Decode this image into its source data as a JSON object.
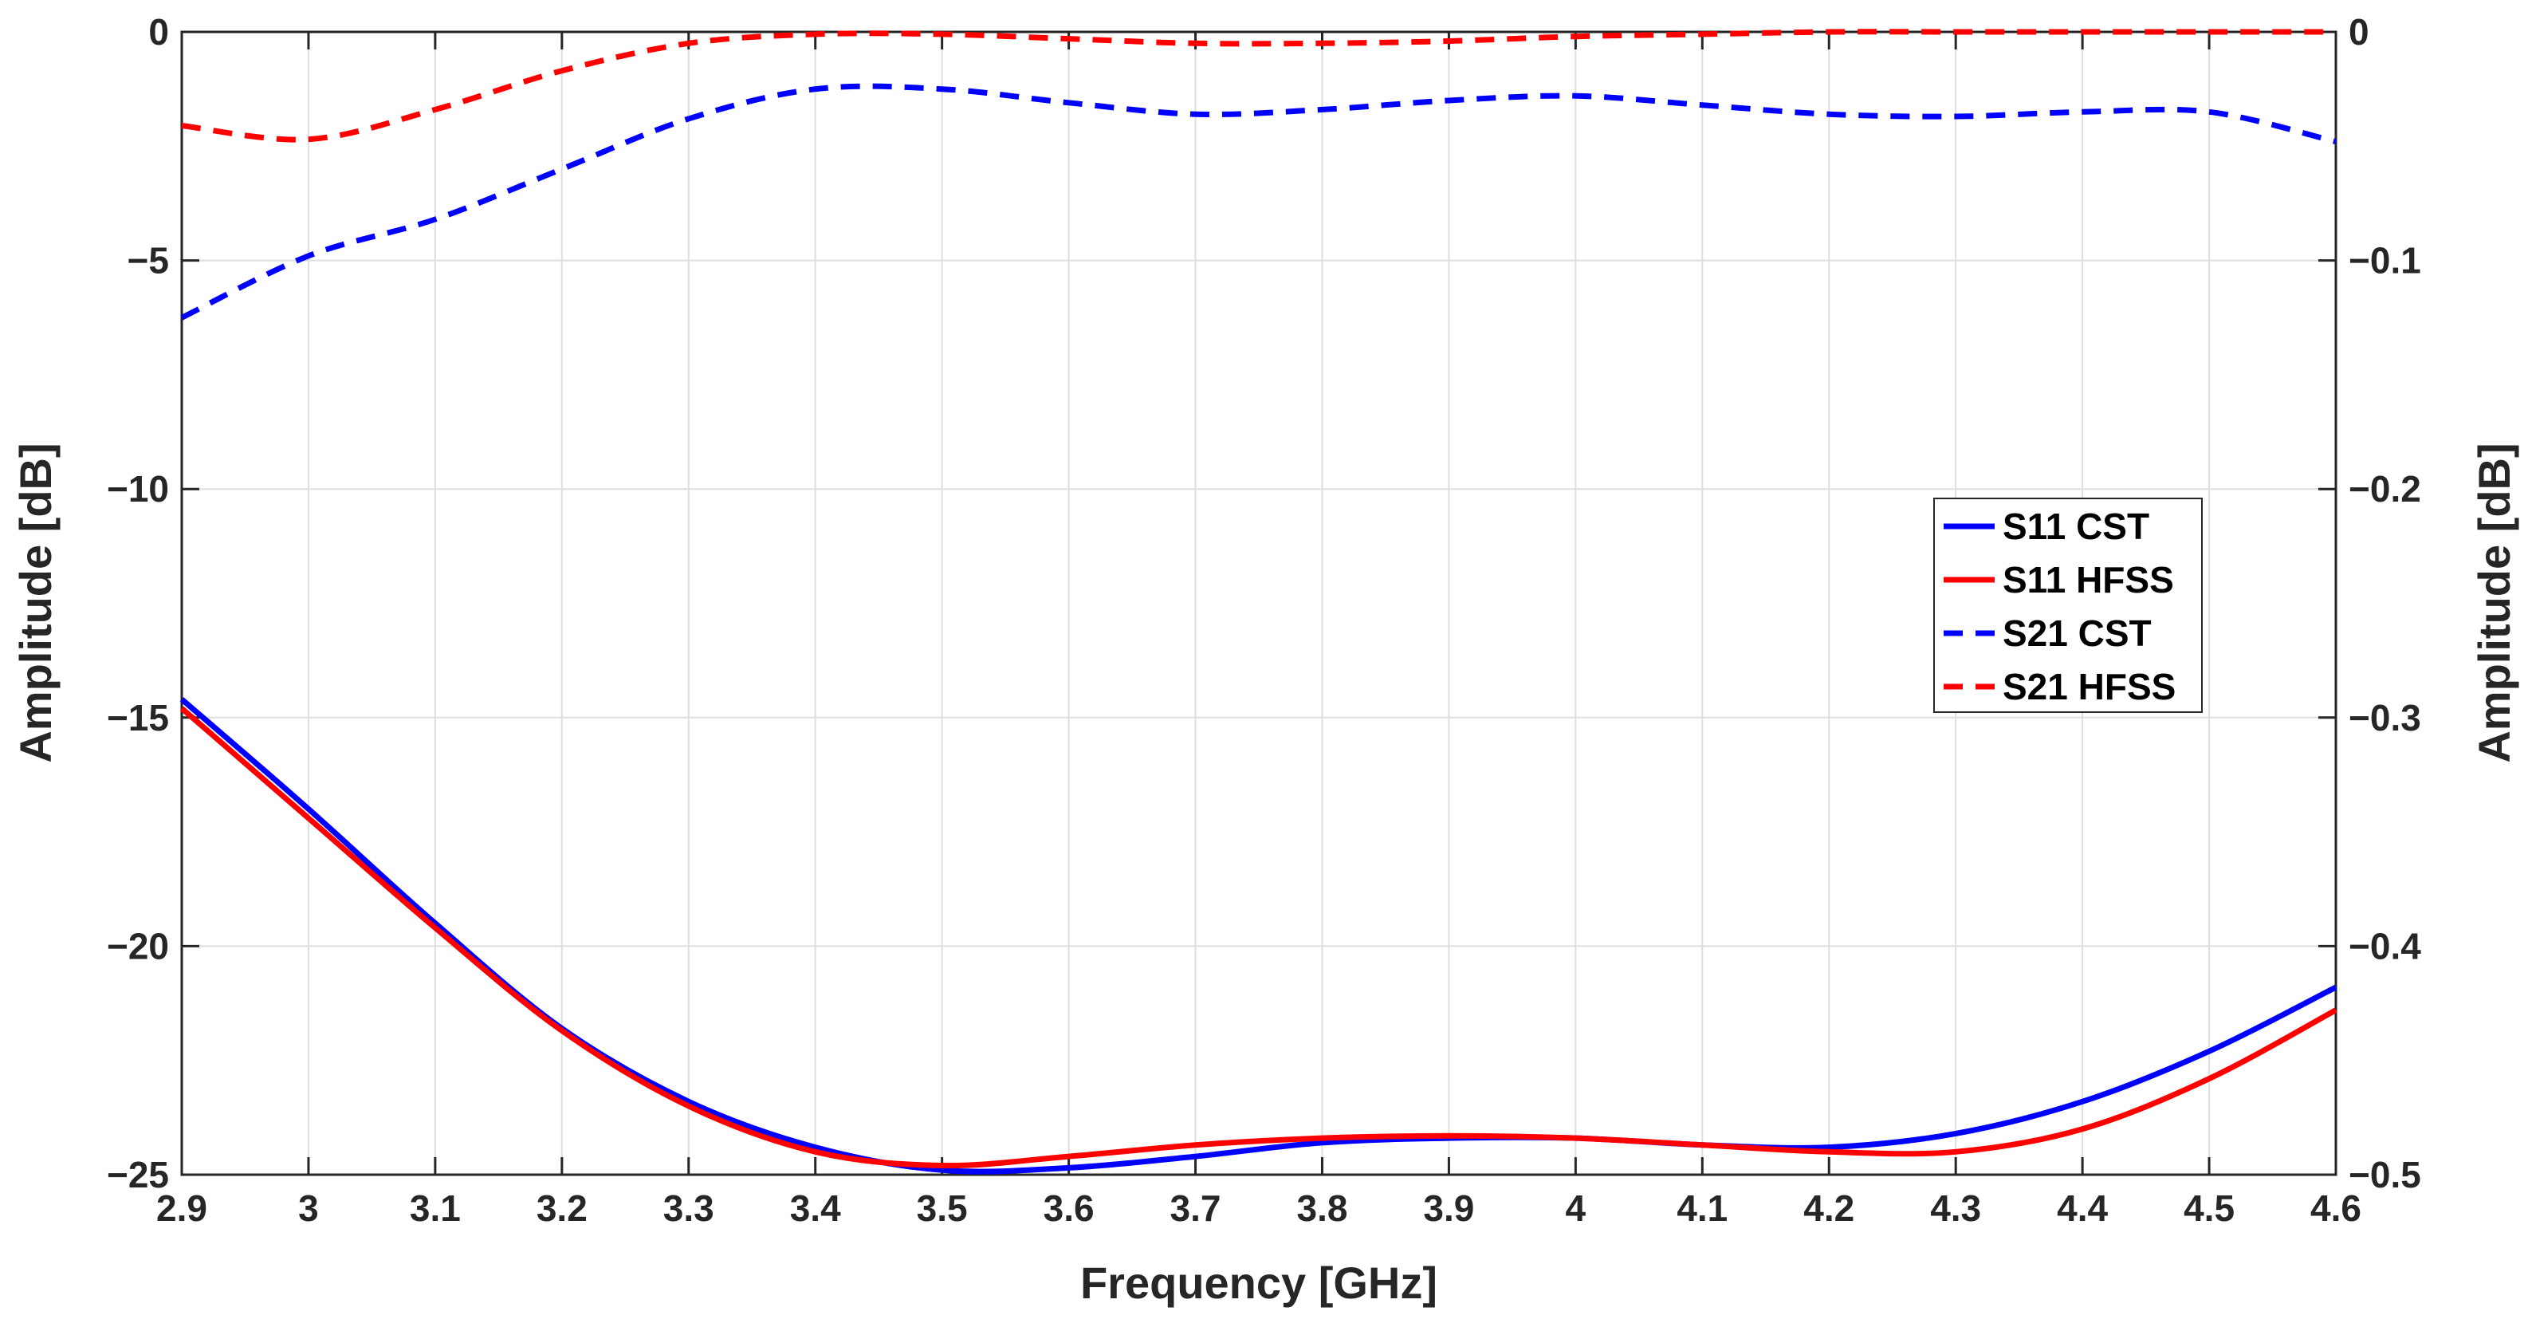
{
  "chart_data": {
    "type": "line",
    "title": "",
    "xlabel": "Frequency [GHz]",
    "ylabel_left": "Amplitude [dB]",
    "ylabel_right": "Amplitude [dB]",
    "xlim": [
      2.9,
      4.6
    ],
    "ylim_left": [
      -25,
      0
    ],
    "ylim_right": [
      -0.5,
      0
    ],
    "x_ticks": [
      "2.9",
      "3",
      "3.1",
      "3.2",
      "3.3",
      "3.4",
      "3.5",
      "3.6",
      "3.7",
      "3.8",
      "3.9",
      "4",
      "4.1",
      "4.2",
      "4.3",
      "4.4",
      "4.5",
      "4.6"
    ],
    "y_left_ticks": [
      "0",
      "−5",
      "−10",
      "−15",
      "−20",
      "−25"
    ],
    "y_right_ticks": [
      "0",
      "−0.1",
      "−0.2",
      "−0.3",
      "−0.4",
      "−0.5"
    ],
    "grid": true,
    "legend_position": "right",
    "series": [
      {
        "name": "S11 CST",
        "color": "#0000ff",
        "style": "solid",
        "axis": "left",
        "x": [
          2.9,
          3.0,
          3.1,
          3.2,
          3.3,
          3.4,
          3.5,
          3.6,
          3.7,
          3.8,
          3.9,
          4.0,
          4.1,
          4.2,
          4.3,
          4.4,
          4.5,
          4.6
        ],
        "y": [
          -14.6,
          -17.0,
          -19.5,
          -21.8,
          -23.4,
          -24.4,
          -24.9,
          -24.85,
          -24.6,
          -24.3,
          -24.2,
          -24.2,
          -24.35,
          -24.4,
          -24.1,
          -23.4,
          -22.3,
          -20.9
        ]
      },
      {
        "name": "S11 HFSS",
        "color": "#ff0000",
        "style": "solid",
        "axis": "left",
        "x": [
          2.9,
          3.0,
          3.1,
          3.2,
          3.3,
          3.4,
          3.5,
          3.6,
          3.7,
          3.8,
          3.9,
          4.0,
          4.1,
          4.2,
          4.3,
          4.4,
          4.5,
          4.6
        ],
        "y": [
          -14.8,
          -17.2,
          -19.6,
          -21.85,
          -23.5,
          -24.5,
          -24.8,
          -24.6,
          -24.35,
          -24.2,
          -24.15,
          -24.2,
          -24.35,
          -24.5,
          -24.5,
          -24.0,
          -22.9,
          -21.4
        ]
      },
      {
        "name": "S21 CST",
        "color": "#0000ff",
        "style": "dashed",
        "axis": "right",
        "x": [
          2.9,
          3.0,
          3.1,
          3.2,
          3.3,
          3.4,
          3.5,
          3.6,
          3.7,
          3.8,
          3.9,
          4.0,
          4.1,
          4.2,
          4.3,
          4.4,
          4.5,
          4.6
        ],
        "y": [
          -0.125,
          -0.098,
          -0.082,
          -0.06,
          -0.038,
          -0.025,
          -0.025,
          -0.031,
          -0.036,
          -0.034,
          -0.03,
          -0.028,
          -0.032,
          -0.036,
          -0.037,
          -0.035,
          -0.035,
          -0.048
        ]
      },
      {
        "name": "S21 HFSS",
        "color": "#ff0000",
        "style": "dashed",
        "axis": "right",
        "x": [
          2.9,
          3.0,
          3.1,
          3.2,
          3.3,
          3.4,
          3.5,
          3.6,
          3.7,
          3.8,
          3.9,
          4.0,
          4.1,
          4.2,
          4.3,
          4.4,
          4.5,
          4.6
        ],
        "y": [
          -0.041,
          -0.047,
          -0.034,
          -0.017,
          -0.005,
          -0.001,
          -0.001,
          -0.003,
          -0.005,
          -0.005,
          -0.004,
          -0.002,
          -0.001,
          0.0,
          0.0,
          0.0,
          0.0,
          0.0
        ]
      }
    ]
  }
}
